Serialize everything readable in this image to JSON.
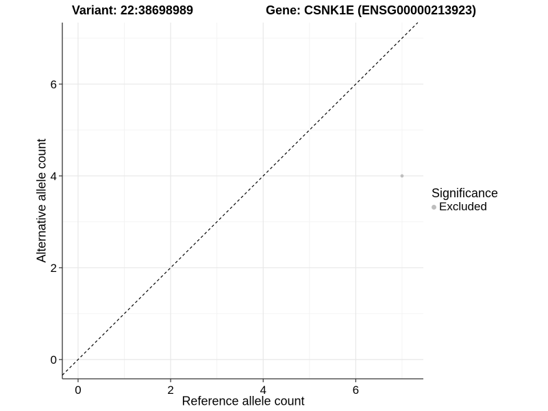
{
  "title": {
    "left": "Variant: 22:38698989",
    "right": "Gene: CSNK1E (ENSG00000213923)"
  },
  "chart_data": {
    "type": "scatter",
    "xlabel": "Reference allele count",
    "ylabel": "Alternative allele count",
    "xlim": [
      -0.34,
      7.46
    ],
    "ylim": [
      -0.42,
      7.34
    ],
    "xticks": [
      0,
      2,
      4,
      6
    ],
    "yticks": [
      0,
      2,
      4,
      6
    ],
    "minor_xticks": [
      1,
      3,
      5,
      7
    ],
    "minor_yticks": [
      1,
      3,
      5,
      7
    ],
    "grid": true,
    "identity_line": {
      "slope": 1,
      "intercept": 0,
      "style": "dashed",
      "color": "#000000"
    },
    "series": [
      {
        "name": "Excluded",
        "color": "#BEBEBE",
        "point_radius": 2.4,
        "points": [
          [
            7,
            4
          ]
        ]
      }
    ],
    "legend": {
      "title": "Significance",
      "position": "right",
      "entries": [
        {
          "label": "Excluded",
          "color": "#BEBEBE"
        }
      ]
    }
  },
  "colors": {
    "background": "#FFFFFF",
    "major_grid": "#E7E7E7",
    "minor_grid": "#F2F2F2",
    "axis_line": "#333333",
    "tick": "#333333",
    "text": "#000000"
  }
}
